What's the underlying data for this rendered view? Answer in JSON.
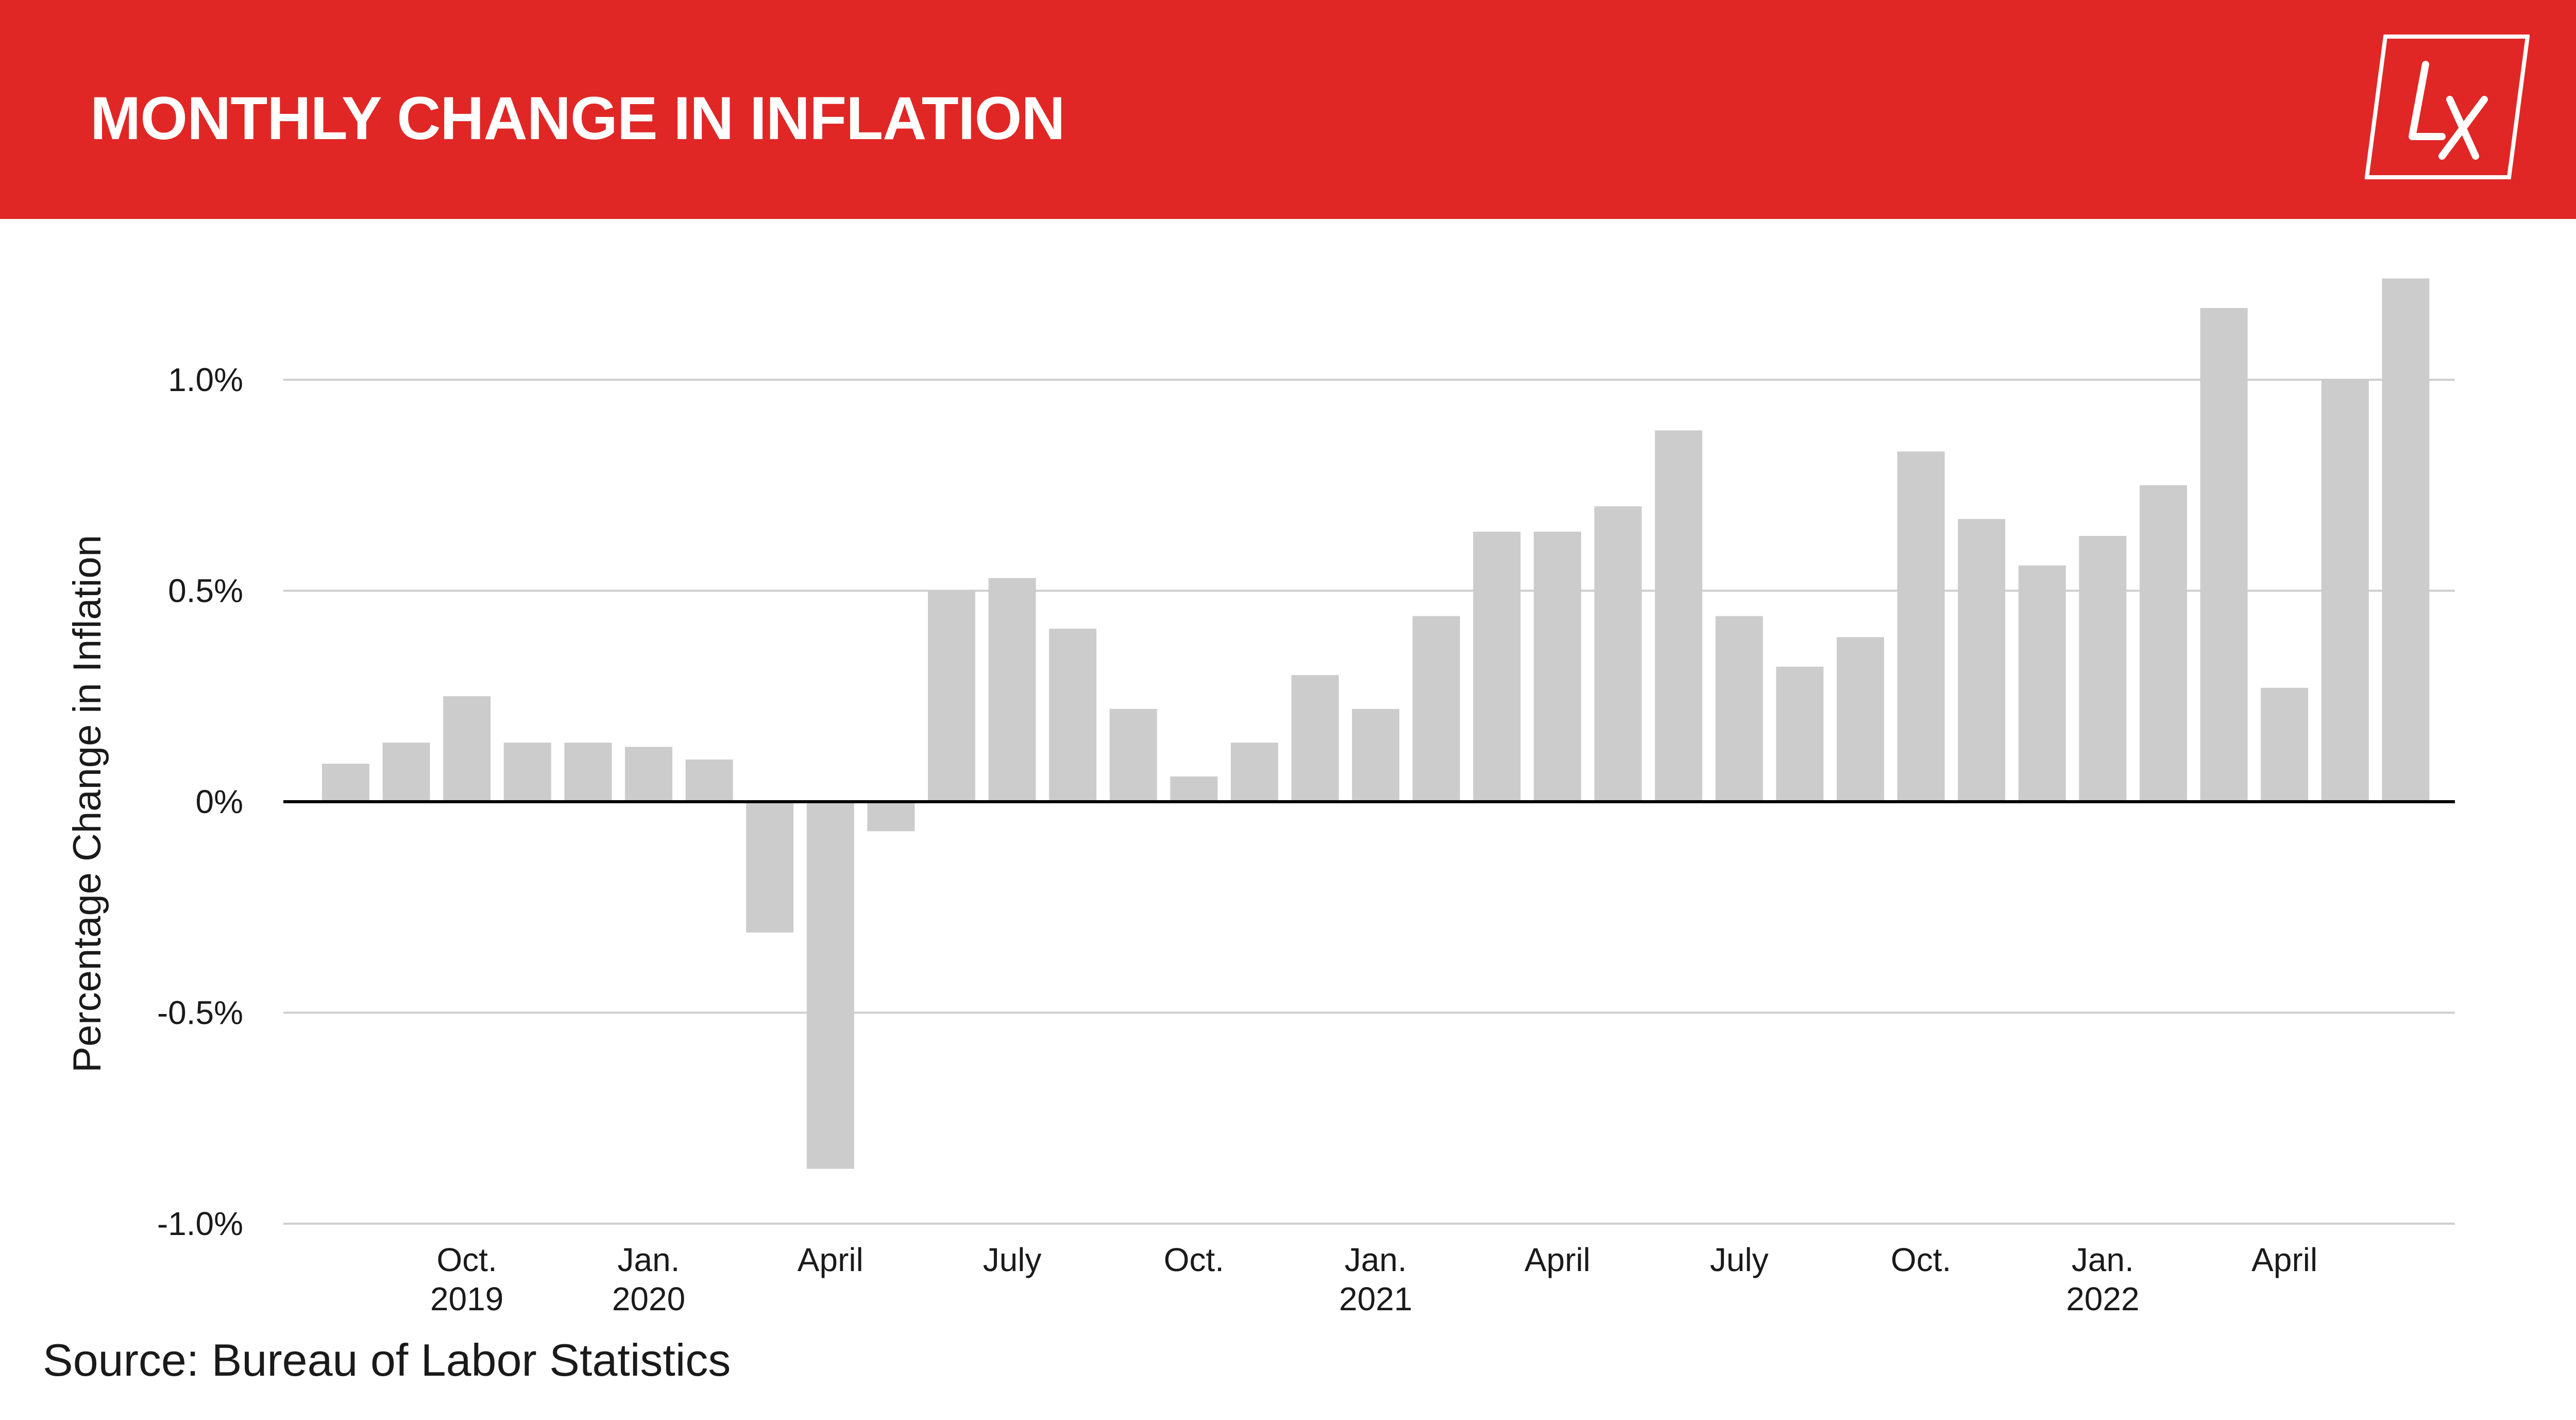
{
  "header": {
    "title": "MONTHLY CHANGE IN INFLATION",
    "logo_text": "LX",
    "logo_icon": "lx-logo-icon"
  },
  "colors": {
    "header_bg": "#e02726",
    "bar": "#cccccc",
    "gridline": "#cfcfcf",
    "zero_line": "#000000",
    "text": "#1a1a1a"
  },
  "source": "Source: Bureau of Labor Statistics",
  "chart_data": {
    "type": "bar",
    "title": "MONTHLY CHANGE IN INFLATION",
    "ylabel": "Percentage Change in Inflation",
    "xlabel": "",
    "ylim": [
      -1.0,
      1.0
    ],
    "yticks": [
      {
        "value": 1.0,
        "label": "1.0%"
      },
      {
        "value": 0.5,
        "label": "0.5%"
      },
      {
        "value": 0.0,
        "label": "0%"
      },
      {
        "value": -0.5,
        "label": "-0.5%"
      },
      {
        "value": -1.0,
        "label": "-1.0%"
      }
    ],
    "grid": true,
    "legend": "none",
    "categories": [
      "2019-08",
      "2019-09",
      "2019-10",
      "2019-11",
      "2019-12",
      "2020-01",
      "2020-02",
      "2020-03",
      "2020-04",
      "2020-05",
      "2020-06",
      "2020-07",
      "2020-08",
      "2020-09",
      "2020-10",
      "2020-11",
      "2020-12",
      "2021-01",
      "2021-02",
      "2021-03",
      "2021-04",
      "2021-05",
      "2021-06",
      "2021-07",
      "2021-08",
      "2021-09",
      "2021-10",
      "2021-11",
      "2021-12",
      "2022-01",
      "2022-02",
      "2022-03",
      "2022-04",
      "2022-05",
      "2022-06"
    ],
    "values": [
      0.09,
      0.14,
      0.25,
      0.14,
      0.14,
      0.13,
      0.1,
      -0.31,
      -0.87,
      -0.07,
      0.5,
      0.53,
      0.41,
      0.22,
      0.06,
      0.14,
      0.3,
      0.22,
      0.44,
      0.64,
      0.64,
      0.7,
      0.88,
      0.44,
      0.32,
      0.39,
      0.83,
      0.67,
      0.56,
      0.63,
      0.75,
      1.17,
      0.27,
      1.0,
      1.24
    ],
    "xtick_labels": [
      {
        "index": 2,
        "line1": "Oct.",
        "line2": "2019"
      },
      {
        "index": 5,
        "line1": "Jan.",
        "line2": "2020"
      },
      {
        "index": 8,
        "line1": "April",
        "line2": ""
      },
      {
        "index": 11,
        "line1": "July",
        "line2": ""
      },
      {
        "index": 14,
        "line1": "Oct.",
        "line2": ""
      },
      {
        "index": 17,
        "line1": "Jan.",
        "line2": "2021"
      },
      {
        "index": 20,
        "line1": "April",
        "line2": ""
      },
      {
        "index": 23,
        "line1": "July",
        "line2": ""
      },
      {
        "index": 26,
        "line1": "Oct.",
        "line2": ""
      },
      {
        "index": 29,
        "line1": "Jan.",
        "line2": "2022"
      },
      {
        "index": 32,
        "line1": "April",
        "line2": ""
      }
    ]
  }
}
